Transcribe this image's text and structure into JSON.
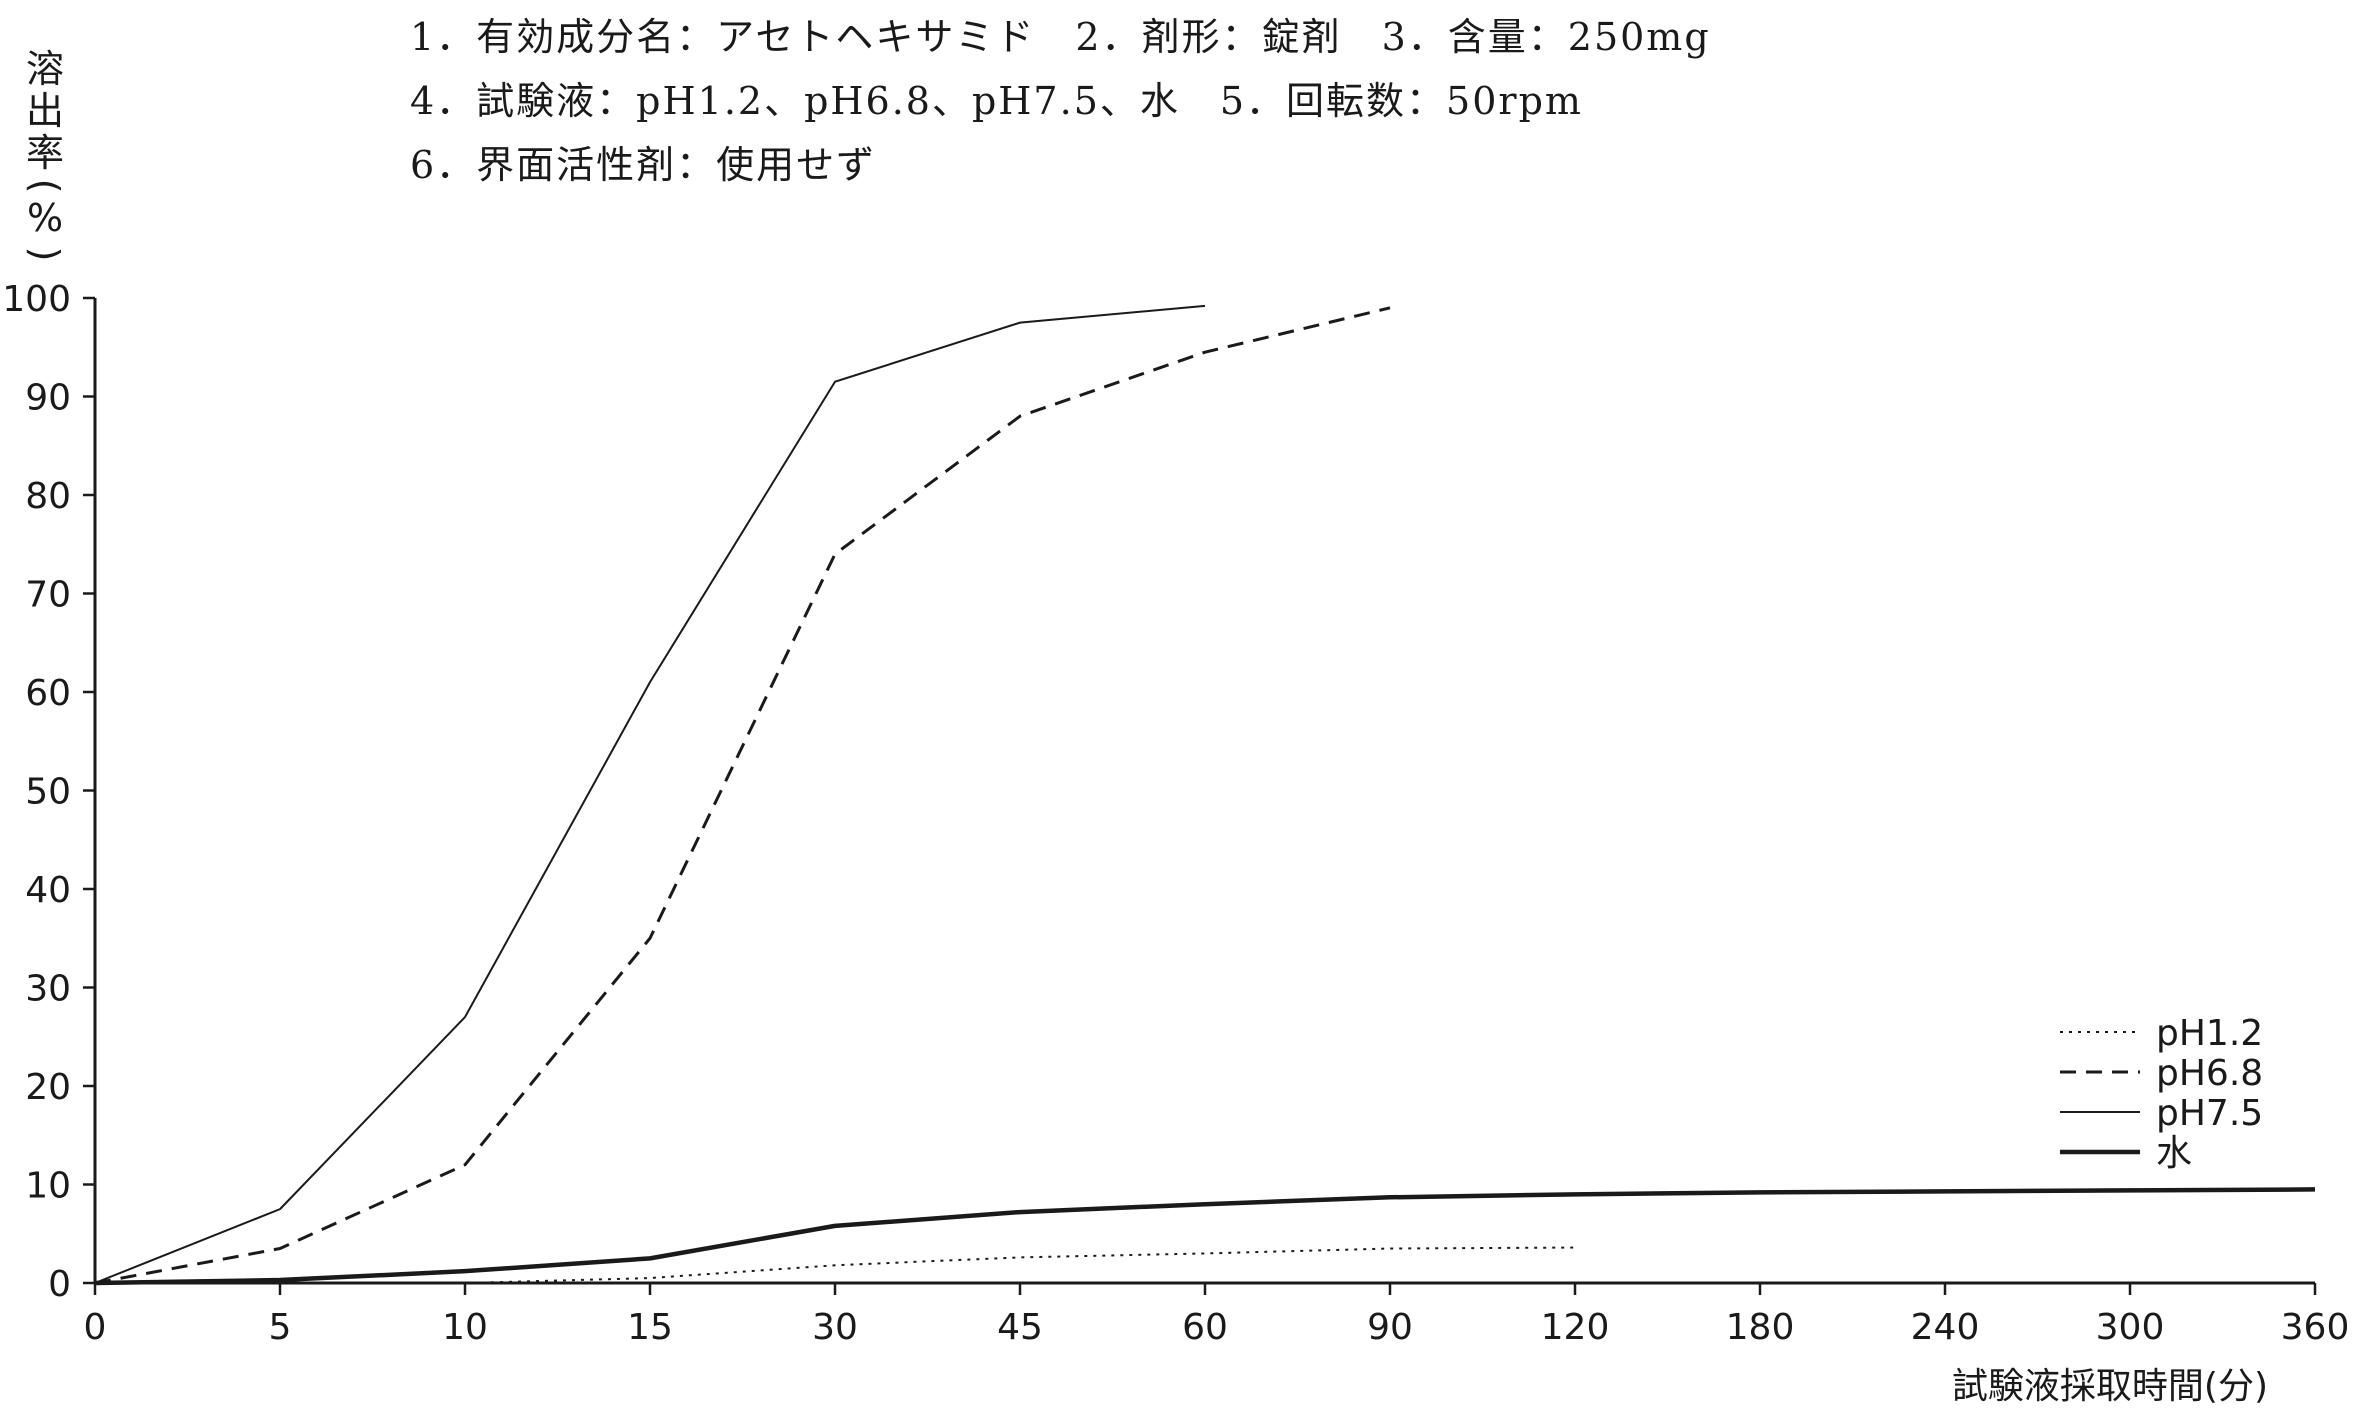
{
  "conditions": [
    "1．有効成分名：アセトヘキサミド　2．剤形：錠剤　3．含量：250mg",
    "4．試験液：pH1.2、pH6.8、pH7.5、水　5．回転数：50rpm",
    "6．界面活性剤：使用せず"
  ],
  "chart_data": {
    "type": "line",
    "title": "",
    "xlabel": "試験液採取時間(分)",
    "ylabel": "溶出率(%)",
    "ylabel_chars": [
      "溶",
      "出",
      "率",
      "(",
      "%",
      ")"
    ],
    "x": [
      "0",
      "5",
      "10",
      "15",
      "30",
      "45",
      "60",
      "90",
      "120",
      "180",
      "240",
      "300",
      "360"
    ],
    "y_ticks": [
      "0",
      "10",
      "20",
      "30",
      "40",
      "50",
      "60",
      "70",
      "80",
      "90",
      "100"
    ],
    "ylim": [
      0,
      100
    ],
    "grid": false,
    "legend_position": "bottom-right",
    "series": [
      {
        "name": "pH1.2",
        "style": "dotted",
        "color": "#1a1a1a",
        "values": [
          0,
          0,
          0,
          0.5,
          1.8,
          2.6,
          3.0,
          3.5,
          3.6,
          null,
          null,
          null,
          null
        ]
      },
      {
        "name": "pH6.8",
        "style": "dashed",
        "color": "#1a1a1a",
        "values": [
          0,
          3.5,
          12,
          35,
          74,
          88,
          94.5,
          99,
          null,
          null,
          null,
          null,
          null
        ]
      },
      {
        "name": "pH7.5",
        "style": "solid-thin",
        "color": "#1a1a1a",
        "values": [
          0,
          7.5,
          27,
          61,
          91.5,
          97.5,
          99.2,
          null,
          null,
          null,
          null,
          null,
          null
        ]
      },
      {
        "name": "水",
        "style": "solid-thick",
        "color": "#1a1a1a",
        "values": [
          0,
          0.3,
          1.2,
          2.5,
          5.8,
          7.2,
          8.0,
          8.7,
          9.0,
          9.2,
          9.3,
          9.4,
          9.5
        ]
      }
    ]
  }
}
